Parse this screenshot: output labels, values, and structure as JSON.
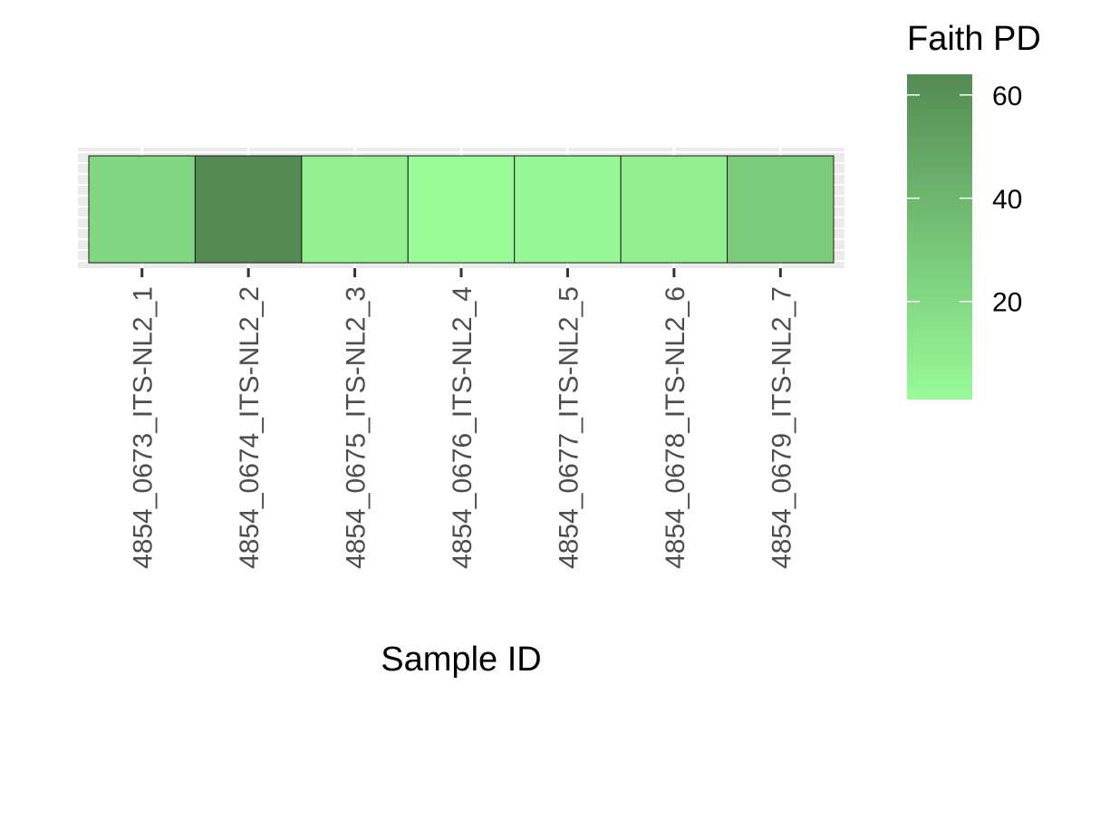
{
  "chart_data": {
    "type": "heatmap",
    "x": [
      "4854_0673_ITS-NL2_1",
      "4854_0674_ITS-NL2_2",
      "4854_0675_ITS-NL2_3",
      "4854_0676_ITS-NL2_4",
      "4854_0677_ITS-NL2_5",
      "4854_0678_ITS-NL2_6",
      "4854_0679_ITS-NL2_7"
    ],
    "values": [
      22,
      64,
      7,
      1,
      3,
      8,
      28
    ],
    "xlabel": "Sample ID",
    "ylabel": "",
    "legend": {
      "title": "Faith PD",
      "position": "right",
      "ticks": [
        20,
        40,
        60
      ],
      "range": [
        1,
        64
      ],
      "low_color": "#98FB98",
      "high_color": "#548B54"
    },
    "grid": true
  }
}
